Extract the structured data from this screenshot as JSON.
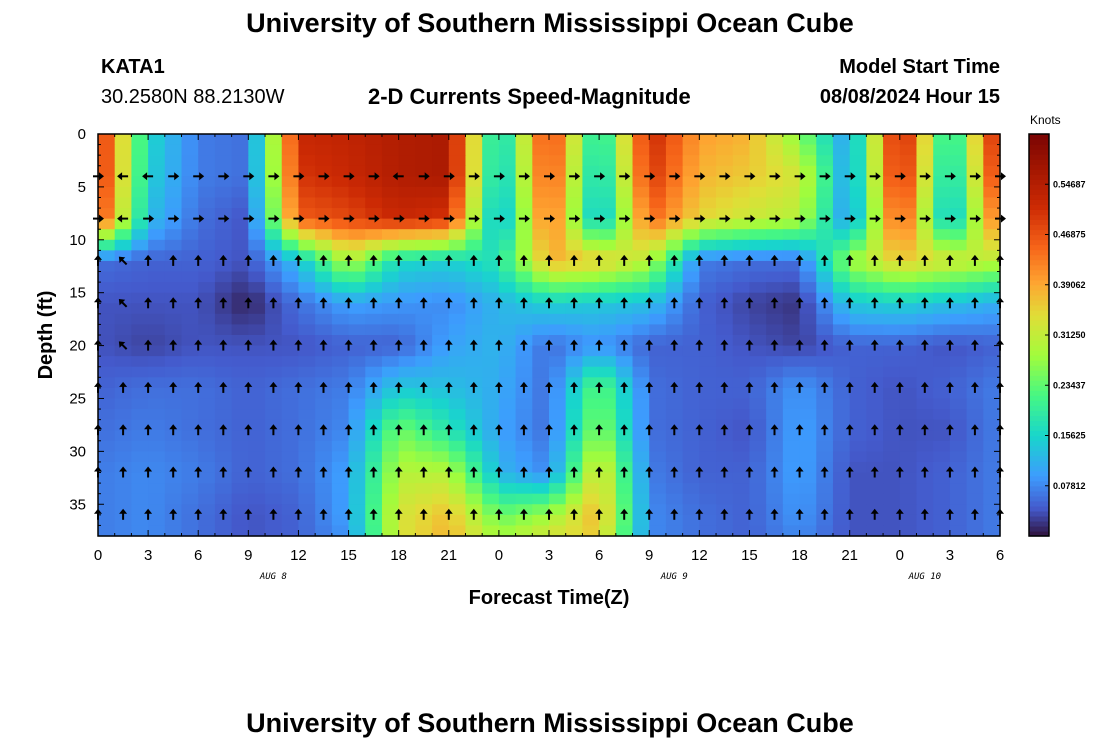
{
  "header": {
    "title": "University of Southern Mississippi Ocean Cube",
    "station_id": "KATA1",
    "station_coords": "30.2580N  88.2130W",
    "subtitle": "2-D Currents Speed-Magnitude",
    "model_label": "Model Start Time",
    "model_time": "08/08/2024 Hour 15"
  },
  "footer": {
    "title": "University of Southern Mississippi Ocean Cube"
  },
  "chart_data": {
    "type": "heatmap",
    "xlabel": "Forecast Time(Z)",
    "ylabel": "Depth (ft)",
    "x_ticks": [
      "0",
      "3",
      "6",
      "9",
      "12",
      "15",
      "18",
      "21",
      "0",
      "3",
      "6",
      "9",
      "12",
      "15",
      "18",
      "21",
      "0",
      "3",
      "6"
    ],
    "date_labels": [
      {
        "label": "AUG 8",
        "tick_index": 3.5
      },
      {
        "label": "AUG 9",
        "tick_index": 11.5
      },
      {
        "label": "AUG 10",
        "tick_index": 16.5
      }
    ],
    "y_ticks": [
      0,
      5,
      10,
      15,
      20,
      25,
      30,
      35
    ],
    "ylim": [
      0,
      38
    ],
    "colorbar": {
      "unit": "Knots",
      "range": [
        0,
        0.625
      ],
      "tick_labels": [
        "0.07812",
        "0.15625",
        "0.23437",
        "0.31250",
        "0.39062",
        "0.46875",
        "0.54687"
      ],
      "tick_values": [
        0.07812,
        0.15625,
        0.23437,
        0.3125,
        0.39062,
        0.46875,
        0.54687
      ]
    },
    "speed_grid": {
      "hours": [
        0,
        3,
        6,
        9,
        12,
        15,
        18,
        21,
        24,
        27,
        30,
        33,
        36,
        39,
        42,
        45,
        48,
        51,
        54
      ],
      "depths": [
        0,
        4,
        8,
        12,
        16,
        20,
        24,
        28,
        32,
        36,
        38
      ],
      "values": [
        [
          0.52,
          0.16,
          0.07,
          0.06,
          0.52,
          0.53,
          0.55,
          0.56,
          0.13,
          0.5,
          0.15,
          0.52,
          0.4,
          0.38,
          0.26,
          0.09,
          0.55,
          0.15,
          0.55
        ],
        [
          0.52,
          0.15,
          0.07,
          0.06,
          0.5,
          0.52,
          0.55,
          0.56,
          0.12,
          0.48,
          0.13,
          0.5,
          0.38,
          0.36,
          0.33,
          0.09,
          0.53,
          0.13,
          0.52
        ],
        [
          0.49,
          0.13,
          0.06,
          0.04,
          0.46,
          0.48,
          0.52,
          0.5,
          0.1,
          0.45,
          0.11,
          0.45,
          0.35,
          0.32,
          0.3,
          0.08,
          0.48,
          0.11,
          0.46
        ],
        [
          0.06,
          0.05,
          0.05,
          0.04,
          0.13,
          0.3,
          0.16,
          0.15,
          0.18,
          0.38,
          0.36,
          0.3,
          0.07,
          0.06,
          0.06,
          0.28,
          0.36,
          0.33,
          0.3
        ],
        [
          0.04,
          0.04,
          0.04,
          0.01,
          0.06,
          0.1,
          0.09,
          0.08,
          0.12,
          0.15,
          0.14,
          0.13,
          0.05,
          0.03,
          0.02,
          0.14,
          0.15,
          0.13,
          0.11
        ],
        [
          0.04,
          0.03,
          0.04,
          0.04,
          0.04,
          0.05,
          0.05,
          0.1,
          0.12,
          0.06,
          0.09,
          0.05,
          0.05,
          0.04,
          0.03,
          0.05,
          0.05,
          0.04,
          0.05
        ],
        [
          0.05,
          0.06,
          0.06,
          0.05,
          0.06,
          0.07,
          0.14,
          0.13,
          0.11,
          0.06,
          0.24,
          0.06,
          0.05,
          0.05,
          0.09,
          0.05,
          0.04,
          0.05,
          0.07
        ],
        [
          0.06,
          0.07,
          0.06,
          0.05,
          0.06,
          0.08,
          0.25,
          0.18,
          0.1,
          0.06,
          0.27,
          0.06,
          0.05,
          0.04,
          0.1,
          0.05,
          0.04,
          0.04,
          0.07
        ],
        [
          0.07,
          0.08,
          0.07,
          0.05,
          0.06,
          0.1,
          0.3,
          0.3,
          0.12,
          0.08,
          0.35,
          0.07,
          0.05,
          0.05,
          0.1,
          0.04,
          0.04,
          0.05,
          0.07
        ],
        [
          0.07,
          0.08,
          0.06,
          0.04,
          0.05,
          0.1,
          0.33,
          0.37,
          0.24,
          0.28,
          0.38,
          0.08,
          0.06,
          0.05,
          0.09,
          0.04,
          0.04,
          0.05,
          0.07
        ],
        [
          0.07,
          0.08,
          0.06,
          0.04,
          0.05,
          0.09,
          0.33,
          0.38,
          0.28,
          0.33,
          0.36,
          0.08,
          0.06,
          0.05,
          0.08,
          0.04,
          0.04,
          0.05,
          0.07
        ]
      ]
    },
    "current_arrow_directions_deg": {
      "depths": [
        4,
        8,
        12,
        16,
        20,
        24,
        28,
        32,
        36
      ],
      "values": [
        [
          90,
          270,
          270,
          90,
          90,
          90,
          90,
          90,
          90,
          90,
          90,
          90,
          270,
          90,
          90,
          90,
          90,
          90,
          90,
          90,
          90,
          90,
          90,
          90,
          90,
          90,
          90,
          90,
          90,
          90,
          90,
          90,
          90,
          90,
          90,
          90,
          90
        ],
        [
          90,
          270,
          90,
          90,
          90,
          90,
          90,
          90,
          90,
          90,
          90,
          90,
          90,
          90,
          90,
          90,
          90,
          90,
          90,
          90,
          90,
          90,
          90,
          90,
          90,
          90,
          90,
          90,
          90,
          90,
          90,
          90,
          90,
          90,
          90,
          90,
          90
        ],
        [
          0,
          315,
          0,
          0,
          0,
          0,
          0,
          0,
          0,
          0,
          0,
          0,
          0,
          0,
          0,
          0,
          0,
          0,
          0,
          0,
          0,
          0,
          0,
          0,
          0,
          0,
          0,
          0,
          0,
          0,
          0,
          0,
          0,
          0,
          0,
          0,
          0
        ],
        [
          0,
          315,
          0,
          0,
          0,
          0,
          0,
          0,
          0,
          0,
          0,
          0,
          0,
          0,
          0,
          0,
          0,
          0,
          0,
          0,
          0,
          0,
          0,
          0,
          0,
          0,
          0,
          0,
          0,
          0,
          0,
          0,
          0,
          0,
          0,
          0,
          0
        ],
        [
          0,
          315,
          0,
          0,
          0,
          0,
          0,
          0,
          0,
          0,
          0,
          0,
          0,
          0,
          0,
          0,
          0,
          0,
          0,
          0,
          0,
          0,
          0,
          0,
          0,
          0,
          0,
          0,
          0,
          0,
          0,
          0,
          0,
          0,
          0,
          0,
          0
        ],
        [
          0,
          0,
          0,
          0,
          0,
          0,
          0,
          0,
          0,
          0,
          0,
          0,
          0,
          0,
          0,
          0,
          0,
          0,
          0,
          0,
          0,
          0,
          0,
          0,
          0,
          0,
          0,
          0,
          0,
          0,
          0,
          0,
          0,
          0,
          0,
          0,
          0
        ],
        [
          0,
          0,
          0,
          0,
          0,
          0,
          0,
          0,
          0,
          0,
          0,
          0,
          0,
          0,
          0,
          0,
          0,
          0,
          0,
          0,
          0,
          0,
          0,
          0,
          0,
          0,
          0,
          0,
          0,
          0,
          0,
          0,
          0,
          0,
          0,
          0,
          0
        ],
        [
          0,
          0,
          0,
          0,
          0,
          0,
          0,
          0,
          0,
          0,
          0,
          0,
          0,
          0,
          0,
          0,
          0,
          0,
          0,
          0,
          0,
          0,
          0,
          0,
          0,
          0,
          0,
          0,
          0,
          0,
          0,
          0,
          0,
          0,
          0,
          0,
          0
        ],
        [
          0,
          0,
          0,
          0,
          0,
          0,
          0,
          0,
          0,
          0,
          0,
          0,
          0,
          0,
          0,
          0,
          0,
          0,
          0,
          0,
          0,
          0,
          0,
          0,
          0,
          0,
          0,
          0,
          0,
          0,
          0,
          0,
          0,
          0,
          0,
          0,
          0
        ]
      ]
    }
  }
}
